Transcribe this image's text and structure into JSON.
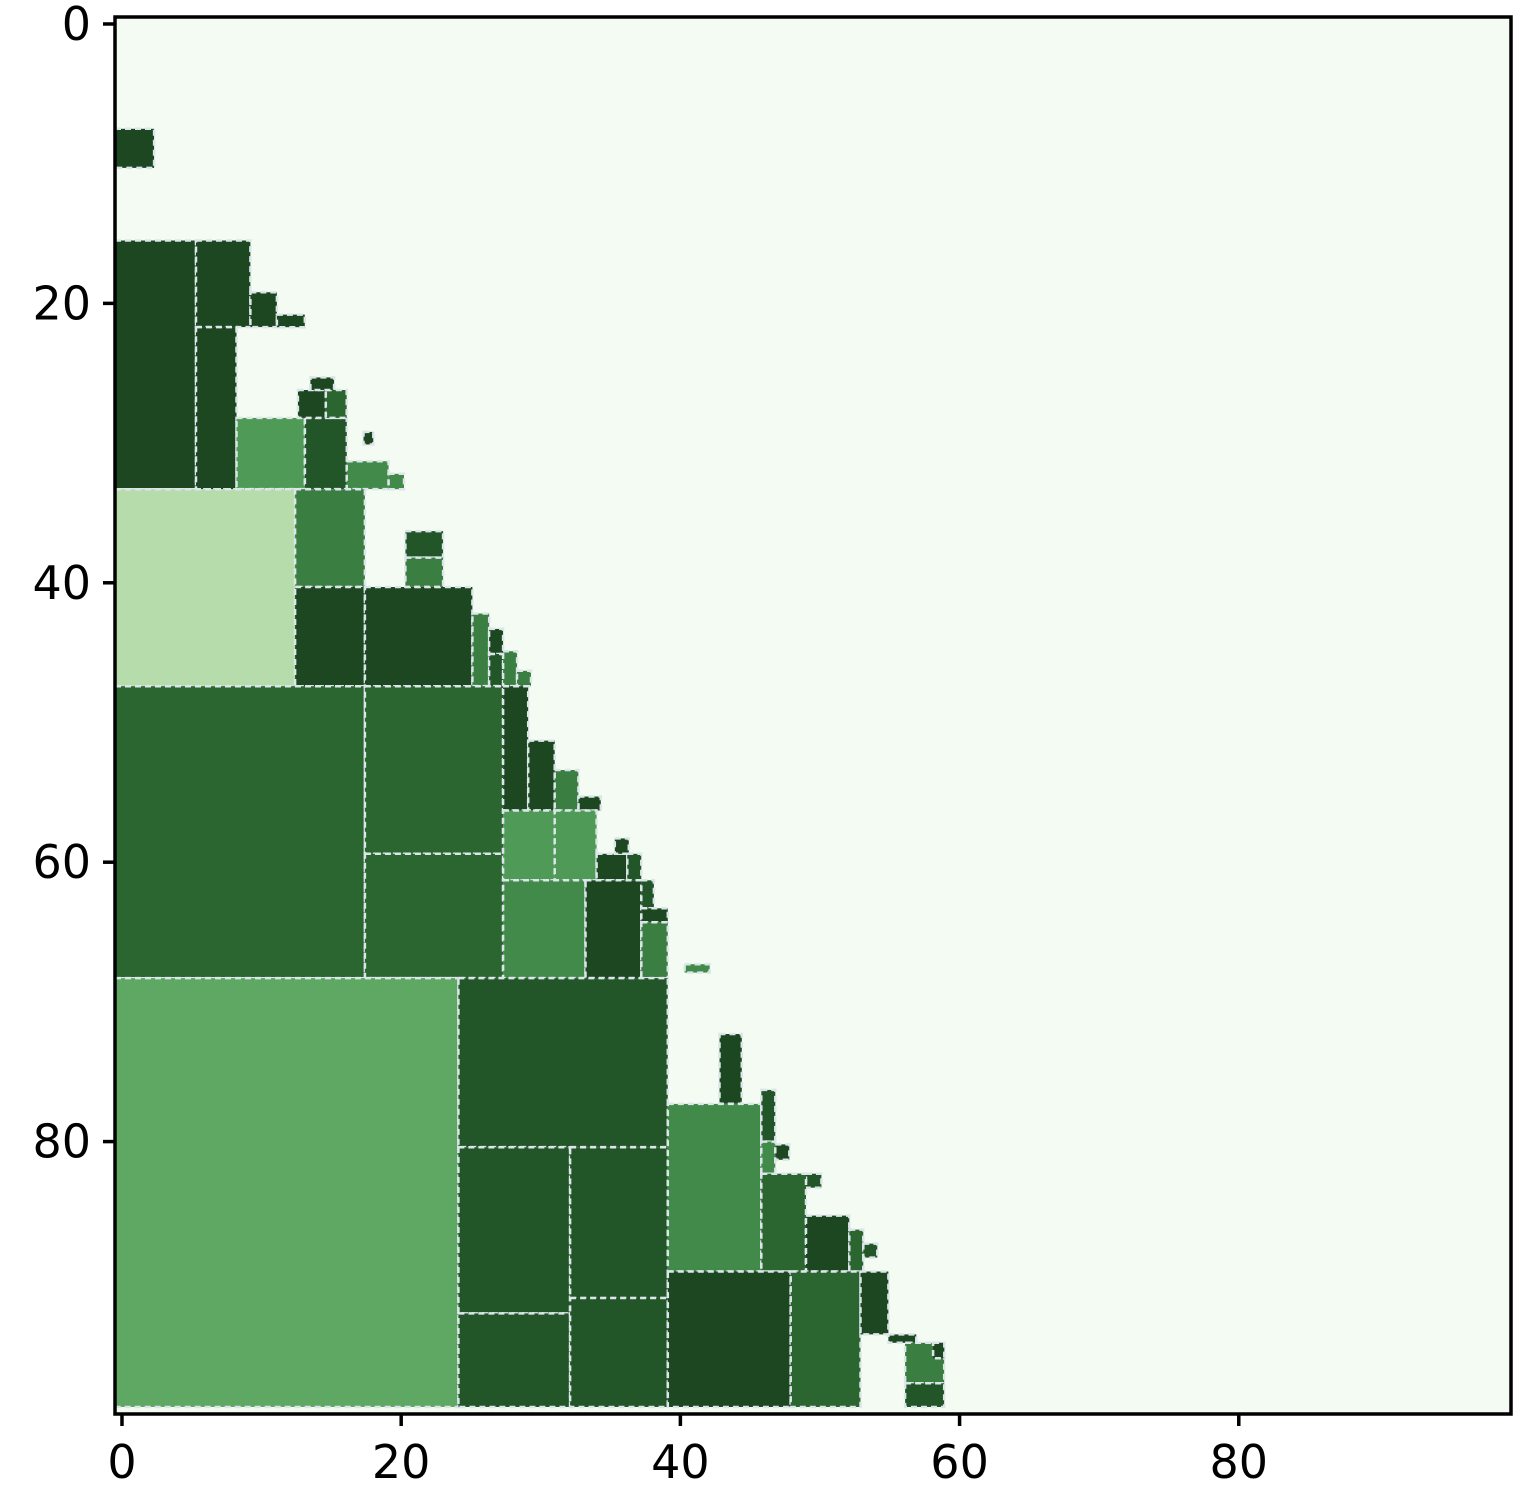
{
  "chart_data": {
    "type": "heatmap",
    "title": "",
    "xlabel": "",
    "ylabel": "",
    "xlim": [
      -0.5,
      99.5
    ],
    "ylim": [
      99.5,
      -0.5
    ],
    "y_inverted": true,
    "grid": false,
    "legend": "none",
    "x_ticks": [
      0,
      20,
      40,
      60,
      80
    ],
    "x_tick_labels": [
      "0",
      "20",
      "40",
      "60",
      "80"
    ],
    "y_ticks": [
      0,
      20,
      40,
      60,
      80
    ],
    "y_tick_labels": [
      "0",
      "20",
      "40",
      "60",
      "80"
    ],
    "colors": {
      "background": "#f4fbf2",
      "border": "#dce6ea",
      "darkest": "#1c4721",
      "darker": "#225628",
      "dark": "#2b6630",
      "mid_dark": "#3a7f41",
      "mid": "#418a49",
      "mid_light": "#4f9a56",
      "light": "#5ea864",
      "lightest": "#b6dcab"
    },
    "blocks": [
      {
        "x0": 0,
        "x1": 2.8,
        "y0": 8,
        "y1": 10.8,
        "fill": "#1c4721"
      },
      {
        "x0": 0,
        "x1": 5.8,
        "y0": 16,
        "y1": 33.8,
        "fill": "#1c4721"
      },
      {
        "x0": 5.8,
        "x1": 9.7,
        "y0": 16,
        "y1": 22.2,
        "fill": "#1c4721"
      },
      {
        "x0": 5.8,
        "x1": 8.7,
        "y0": 22.2,
        "y1": 33.8,
        "fill": "#1c4721"
      },
      {
        "x0": 9.7,
        "x1": 11.6,
        "y0": 19.7,
        "y1": 22.2,
        "fill": "#1c4721"
      },
      {
        "x0": 11.6,
        "x1": 13.6,
        "y0": 21.3,
        "y1": 22.2,
        "fill": "#1c4721"
      },
      {
        "x0": 8.7,
        "x1": 13.6,
        "y0": 28.7,
        "y1": 33.8,
        "fill": "#4f9a56"
      },
      {
        "x0": 13.6,
        "x1": 16.6,
        "y0": 28.7,
        "y1": 33.8,
        "fill": "#225628"
      },
      {
        "x0": 13.1,
        "x1": 15.1,
        "y0": 26.7,
        "y1": 28.7,
        "fill": "#1c4721"
      },
      {
        "x0": 15.1,
        "x1": 16.6,
        "y0": 26.7,
        "y1": 28.7,
        "fill": "#2b6630"
      },
      {
        "x0": 14,
        "x1": 15.7,
        "y0": 25.8,
        "y1": 26.7,
        "fill": "#1c4721"
      },
      {
        "x0": 17.8,
        "x1": 18.5,
        "y0": 29.7,
        "y1": 30.6,
        "fill": "#1c4721"
      },
      {
        "x0": 16.6,
        "x1": 19.6,
        "y0": 31.8,
        "y1": 33.8,
        "fill": "#418a49"
      },
      {
        "x0": 19.6,
        "x1": 20.7,
        "y0": 32.7,
        "y1": 33.8,
        "fill": "#418a49"
      },
      {
        "x0": 0,
        "x1": 12.9,
        "y0": 33.8,
        "y1": 47.9,
        "fill": "#b6dcab"
      },
      {
        "x0": 12.9,
        "x1": 17.9,
        "y0": 33.8,
        "y1": 40.8,
        "fill": "#3a7f41"
      },
      {
        "x0": 12.9,
        "x1": 17.9,
        "y0": 40.8,
        "y1": 47.9,
        "fill": "#1c4721"
      },
      {
        "x0": 17.9,
        "x1": 25.6,
        "y0": 40.8,
        "y1": 47.9,
        "fill": "#1c4721"
      },
      {
        "x0": 20.8,
        "x1": 23.5,
        "y0": 36.8,
        "y1": 38.7,
        "fill": "#225628"
      },
      {
        "x0": 20.8,
        "x1": 23.5,
        "y0": 38.7,
        "y1": 40.8,
        "fill": "#3a7f41"
      },
      {
        "x0": 25.6,
        "x1": 26.8,
        "y0": 42.7,
        "y1": 47.9,
        "fill": "#3a7f41"
      },
      {
        "x0": 26.8,
        "x1": 27.8,
        "y0": 43.8,
        "y1": 45.6,
        "fill": "#1c4721"
      },
      {
        "x0": 26.8,
        "x1": 27.8,
        "y0": 45.6,
        "y1": 47.9,
        "fill": "#225628"
      },
      {
        "x0": 27.8,
        "x1": 28.8,
        "y0": 45.4,
        "y1": 47.9,
        "fill": "#3a7f41"
      },
      {
        "x0": 28.8,
        "x1": 29.8,
        "y0": 46.8,
        "y1": 47.9,
        "fill": "#3a7f41"
      },
      {
        "x0": 0,
        "x1": 17.9,
        "y0": 47.9,
        "y1": 68.8,
        "fill": "#2b6630"
      },
      {
        "x0": 17.9,
        "x1": 27.8,
        "y0": 47.9,
        "y1": 59.9,
        "fill": "#2b6630"
      },
      {
        "x0": 17.9,
        "x1": 27.8,
        "y0": 59.9,
        "y1": 68.8,
        "fill": "#2b6630"
      },
      {
        "x0": 27.8,
        "x1": 29.6,
        "y0": 47.9,
        "y1": 56.8,
        "fill": "#1c4721"
      },
      {
        "x0": 29.6,
        "x1": 31.5,
        "y0": 51.8,
        "y1": 56.8,
        "fill": "#1c4721"
      },
      {
        "x0": 31.5,
        "x1": 33.2,
        "y0": 53.9,
        "y1": 56.8,
        "fill": "#3a7f41"
      },
      {
        "x0": 33.2,
        "x1": 34.8,
        "y0": 55.8,
        "y1": 56.8,
        "fill": "#1c4721"
      },
      {
        "x0": 27.8,
        "x1": 31.5,
        "y0": 56.8,
        "y1": 61.8,
        "fill": "#4f9a56"
      },
      {
        "x0": 31.5,
        "x1": 34.5,
        "y0": 56.8,
        "y1": 61.8,
        "fill": "#4f9a56"
      },
      {
        "x0": 34.5,
        "x1": 36.7,
        "y0": 59.9,
        "y1": 61.8,
        "fill": "#1c4721"
      },
      {
        "x0": 35.8,
        "x1": 36.8,
        "y0": 58.8,
        "y1": 59.9,
        "fill": "#1c4721"
      },
      {
        "x0": 36.7,
        "x1": 37.7,
        "y0": 59.9,
        "y1": 61.8,
        "fill": "#225628"
      },
      {
        "x0": 27.8,
        "x1": 33.7,
        "y0": 61.8,
        "y1": 68.8,
        "fill": "#418a49"
      },
      {
        "x0": 33.7,
        "x1": 37.7,
        "y0": 61.8,
        "y1": 68.8,
        "fill": "#1c4721"
      },
      {
        "x0": 37.7,
        "x1": 38.6,
        "y0": 61.8,
        "y1": 63.8,
        "fill": "#225628"
      },
      {
        "x0": 37.7,
        "x1": 39.6,
        "y0": 63.8,
        "y1": 64.8,
        "fill": "#1c4721"
      },
      {
        "x0": 37.7,
        "x1": 39.6,
        "y0": 64.8,
        "y1": 68.8,
        "fill": "#3a7f41"
      },
      {
        "x0": 40.8,
        "x1": 42.6,
        "y0": 67.8,
        "y1": 68.4,
        "fill": "#418a49"
      },
      {
        "x0": 0,
        "x1": 24.6,
        "y0": 68.8,
        "y1": 99.5,
        "fill": "#5ea864"
      },
      {
        "x0": 24.6,
        "x1": 39.6,
        "y0": 68.8,
        "y1": 80.9,
        "fill": "#225628"
      },
      {
        "x0": 24.6,
        "x1": 32.6,
        "y0": 80.9,
        "y1": 92.8,
        "fill": "#225628"
      },
      {
        "x0": 32.6,
        "x1": 39.6,
        "y0": 80.9,
        "y1": 91.7,
        "fill": "#225628"
      },
      {
        "x0": 24.6,
        "x1": 32.6,
        "y0": 92.8,
        "y1": 99.5,
        "fill": "#225628"
      },
      {
        "x0": 32.6,
        "x1": 39.6,
        "y0": 91.7,
        "y1": 99.5,
        "fill": "#225628"
      },
      {
        "x0": 43.3,
        "x1": 44.9,
        "y0": 72.8,
        "y1": 77.8,
        "fill": "#1c4721"
      },
      {
        "x0": 39.6,
        "x1": 46.3,
        "y0": 77.8,
        "y1": 89.8,
        "fill": "#418a49"
      },
      {
        "x0": 46.3,
        "x1": 47.3,
        "y0": 76.8,
        "y1": 80.5,
        "fill": "#225628"
      },
      {
        "x0": 46.3,
        "x1": 47.3,
        "y0": 80.5,
        "y1": 82.8,
        "fill": "#418a49"
      },
      {
        "x0": 47.3,
        "x1": 48.3,
        "y0": 80.7,
        "y1": 81.8,
        "fill": "#1c4721"
      },
      {
        "x0": 48.3,
        "x1": 49.5,
        "y0": 82.8,
        "y1": 83.8,
        "fill": "#1c4721"
      },
      {
        "x0": 49.5,
        "x1": 50.6,
        "y0": 82.8,
        "y1": 83.8,
        "fill": "#225628"
      },
      {
        "x0": 46.3,
        "x1": 49.5,
        "y0": 82.8,
        "y1": 89.8,
        "fill": "#2b6630"
      },
      {
        "x0": 49.5,
        "x1": 52.6,
        "y0": 85.8,
        "y1": 89.8,
        "fill": "#1c4721"
      },
      {
        "x0": 52.6,
        "x1": 53.6,
        "y0": 86.8,
        "y1": 89.8,
        "fill": "#2b6630"
      },
      {
        "x0": 53.6,
        "x1": 54.6,
        "y0": 87.8,
        "y1": 88.8,
        "fill": "#225628"
      },
      {
        "x0": 39.6,
        "x1": 48.4,
        "y0": 89.8,
        "y1": 99.5,
        "fill": "#1c4721"
      },
      {
        "x0": 48.4,
        "x1": 53.4,
        "y0": 89.8,
        "y1": 99.5,
        "fill": "#2b6630"
      },
      {
        "x0": 53.4,
        "x1": 55.4,
        "y0": 89.8,
        "y1": 94.3,
        "fill": "#1c4721"
      },
      {
        "x0": 55.4,
        "x1": 57.4,
        "y0": 94.3,
        "y1": 94.9,
        "fill": "#1c4721"
      },
      {
        "x0": 56.6,
        "x1": 59.4,
        "y0": 94.9,
        "y1": 97.8,
        "fill": "#3a7f41"
      },
      {
        "x0": 58.6,
        "x1": 59.4,
        "y0": 94.9,
        "y1": 96,
        "fill": "#1c4721"
      },
      {
        "x0": 56.6,
        "x1": 59.4,
        "y0": 97.8,
        "y1": 99.5,
        "fill": "#225628"
      }
    ]
  }
}
